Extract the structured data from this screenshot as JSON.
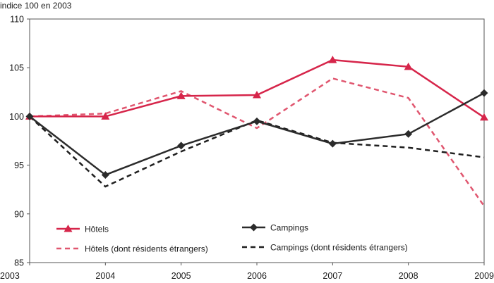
{
  "chart_data": {
    "type": "line",
    "ylabel": "indice 100 en 2003",
    "x": [
      "2003",
      "2004",
      "2005",
      "2006",
      "2007",
      "2008",
      "2009"
    ],
    "yticks": [
      "85",
      "90",
      "95",
      "100",
      "105",
      "110"
    ],
    "ylim": [
      85,
      110
    ],
    "grid": false,
    "legend_position": "bottom-inside",
    "series": [
      {
        "name": "Hôtels",
        "values": [
          100,
          100,
          102.1,
          102.2,
          105.8,
          105.1,
          99.9
        ],
        "color": "#d6254a",
        "style": "solid",
        "marker": "triangle"
      },
      {
        "name": "Campings",
        "values": [
          100,
          94,
          97,
          99.5,
          97.2,
          98.2,
          102.4
        ],
        "color": "#2b2b2b",
        "style": "solid",
        "marker": "diamond"
      },
      {
        "name": "Hôtels (dont résidents étrangers)",
        "values": [
          100,
          100.3,
          102.6,
          98.8,
          103.9,
          101.9,
          90.8
        ],
        "color": "#e0566f",
        "style": "dashed",
        "marker": "none"
      },
      {
        "name": "Campings (dont résidents étrangers)",
        "values": [
          100,
          92.8,
          96.4,
          99.6,
          97.3,
          96.8,
          95.8
        ],
        "color": "#1f1f1f",
        "style": "dashed",
        "marker": "none"
      }
    ]
  }
}
